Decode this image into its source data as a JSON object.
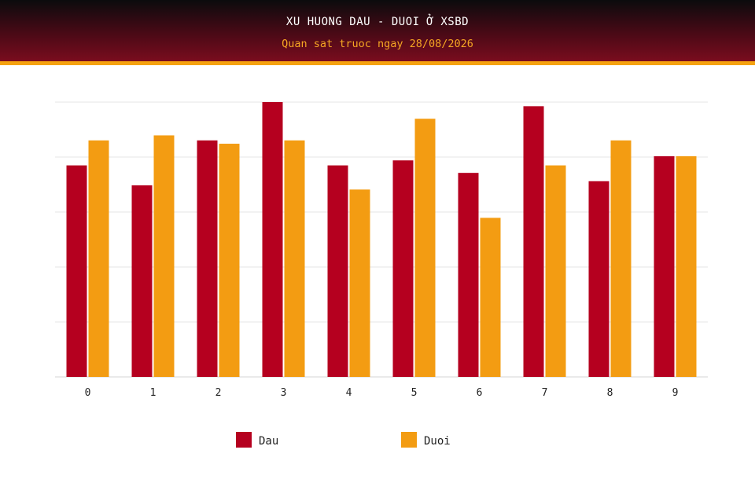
{
  "header": {
    "title": "XU HUONG DAU - DUOI Ở XSBD",
    "subtitle": "Quan sat truoc ngay 28/08/2026"
  },
  "colors": {
    "dau": "#b5001f",
    "duoi": "#f39c12",
    "header_dark": "#0b0b0d",
    "header_red": "#7a0c1e",
    "accent": "#f5a20f",
    "grid": "#e6e6e6"
  },
  "chart_data": {
    "type": "bar",
    "title": "XU HUONG DAU - DUOI Ở XSBD",
    "subtitle": "Quan sat truoc ngay 28/08/2026",
    "xlabel": "",
    "ylabel": "",
    "categories": [
      "0",
      "1",
      "2",
      "3",
      "4",
      "5",
      "6",
      "7",
      "8",
      "9"
    ],
    "series": [
      {
        "name": "Dau",
        "color": "#b5001f",
        "values": [
          25.4,
          23.0,
          28.4,
          33.0,
          25.4,
          26.0,
          24.5,
          32.5,
          23.5,
          26.5
        ]
      },
      {
        "name": "Duoi",
        "color": "#f39c12",
        "values": [
          28.4,
          29.0,
          28.0,
          28.4,
          22.5,
          31.0,
          19.1,
          25.4,
          28.4,
          26.5
        ]
      }
    ],
    "ylim": [
      0,
      33
    ],
    "grid": true,
    "y_tick_labels_shown": false,
    "legend": "bottom-center"
  }
}
